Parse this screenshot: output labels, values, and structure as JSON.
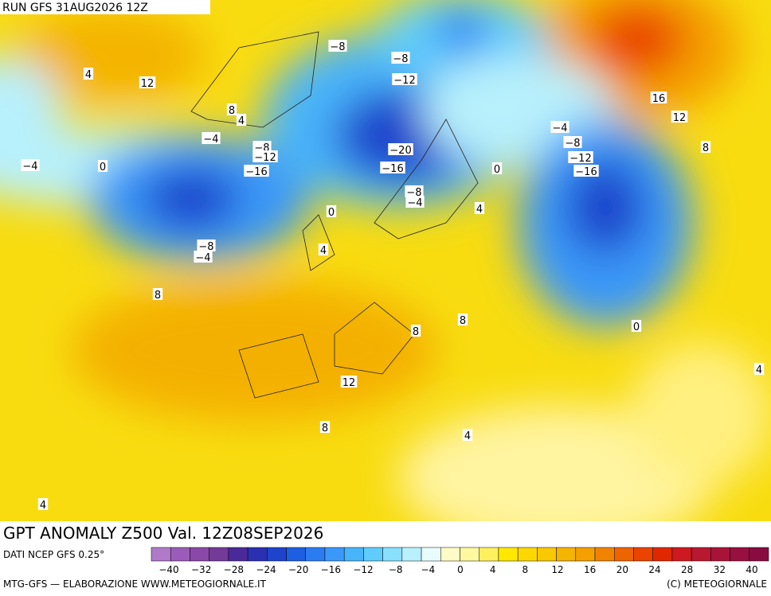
{
  "header": {
    "run": "RUN GFS 31AUG2026 12Z"
  },
  "map": {
    "contour_labels": [
      "4",
      "12",
      "8",
      "4",
      "−8",
      "−8",
      "−12",
      "−4",
      "−8",
      "−12",
      "−16",
      "−20",
      "−16",
      "−4",
      "0",
      "0",
      "−8",
      "−4",
      "0",
      "4",
      "−4",
      "−8",
      "−12",
      "−16",
      "16",
      "12",
      "8",
      "−8",
      "−4",
      "4",
      "8",
      "8",
      "8",
      "0",
      "12",
      "8",
      "4",
      "4",
      "4"
    ]
  },
  "footer": {
    "title": "GPT ANOMALY Z500 Val. 12Z08SEP2026",
    "source": "DATI NCEP GFS 0.25°",
    "credit": "MTG-GFS — ELABORAZIONE WWW.METEOGIORNALE.IT",
    "copyright": "(C) METEOGIORNALE"
  },
  "colorbar": {
    "colors": [
      "#b07ac8",
      "#9a5cb8",
      "#8a48a8",
      "#743a98",
      "#4a2a98",
      "#2a30b0",
      "#1e44cc",
      "#1e5ee0",
      "#2a7cf0",
      "#3a98f8",
      "#48b4fa",
      "#60ccfc",
      "#88e0fc",
      "#b8f0fc",
      "#e8fcfc",
      "#fffcc8",
      "#fff8a0",
      "#fff060",
      "#ffe800",
      "#fcd800",
      "#f8c800",
      "#f4b400",
      "#f4a000",
      "#f08400",
      "#ee6400",
      "#ea4400",
      "#e02800",
      "#cc1a20",
      "#b81830",
      "#a81438",
      "#981040",
      "#880c40"
    ],
    "ticks": [
      "−40",
      "−32",
      "−28",
      "−24",
      "−20",
      "−16",
      "−12",
      "−8",
      "−4",
      "0",
      "4",
      "8",
      "12",
      "16",
      "20",
      "24",
      "28",
      "32",
      "40"
    ]
  }
}
